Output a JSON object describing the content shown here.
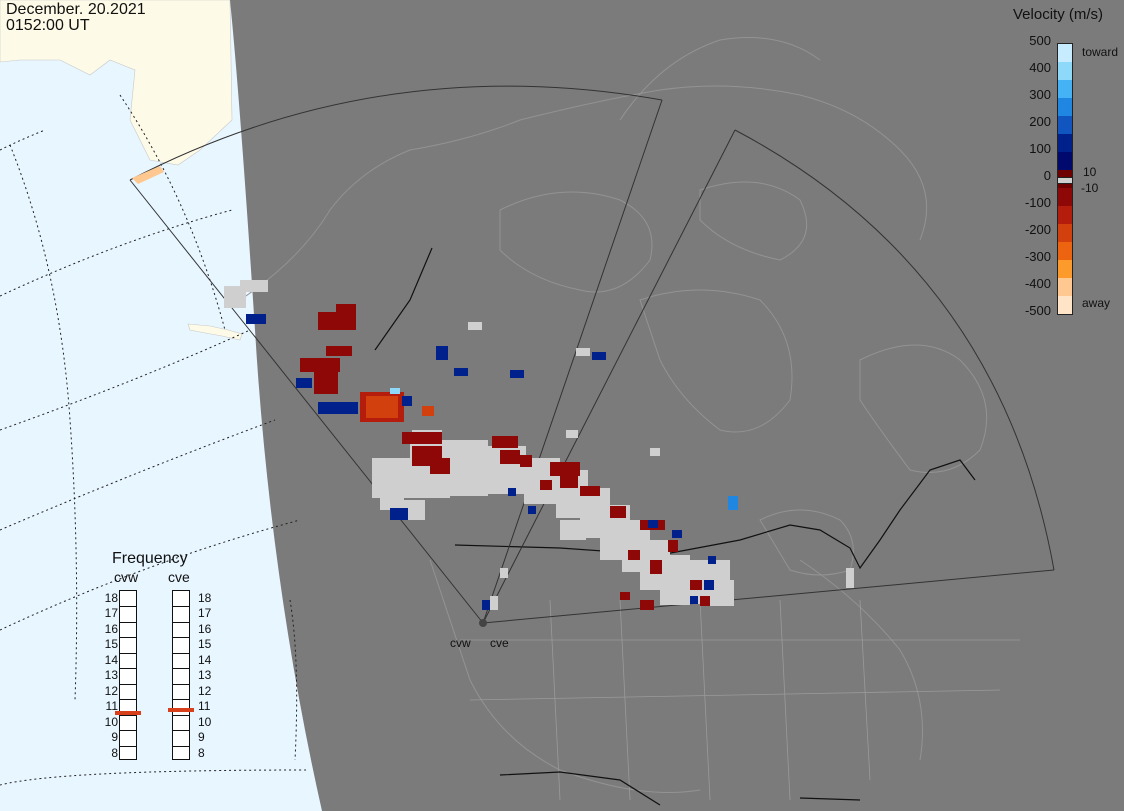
{
  "header": {
    "date": "December. 20.2021",
    "time": "0152:00 UT"
  },
  "legend": {
    "title": "Velocity (m/s)",
    "ticks": [
      "500",
      "400",
      "300",
      "200",
      "100",
      "0",
      "-100",
      "-200",
      "-300",
      "-400",
      "-500"
    ],
    "toward_label": "toward",
    "away_label": "away",
    "pos_threshold": "10",
    "neg_threshold": "-10",
    "colors": [
      "#c8ecff",
      "#8ed8fa",
      "#44b2f4",
      "#1f86e2",
      "#1155c0",
      "#00208c",
      "#000a6e",
      "#6e0000",
      "#8e0808",
      "#b41c0c",
      "#d2400e",
      "#ec6410",
      "#fd9a2c",
      "#fec890",
      "#ffe4c8"
    ],
    "ground_scatter_color": "#cfcfcf"
  },
  "frequency": {
    "title": "Frequency",
    "stations": [
      {
        "code": "cvw",
        "freq_mhz": 10.6
      },
      {
        "code": "cve",
        "freq_mhz": 10.8
      }
    ],
    "scale": [
      "18",
      "17",
      "16",
      "15",
      "14",
      "13",
      "12",
      "11",
      "10",
      "9",
      "8"
    ]
  },
  "map": {
    "night_color": "#7b7b7b",
    "ocean_day_color": "#e8f6ff",
    "land_day_color": "#fdfbe8",
    "station_labels": [
      "cvw",
      "cve"
    ]
  }
}
